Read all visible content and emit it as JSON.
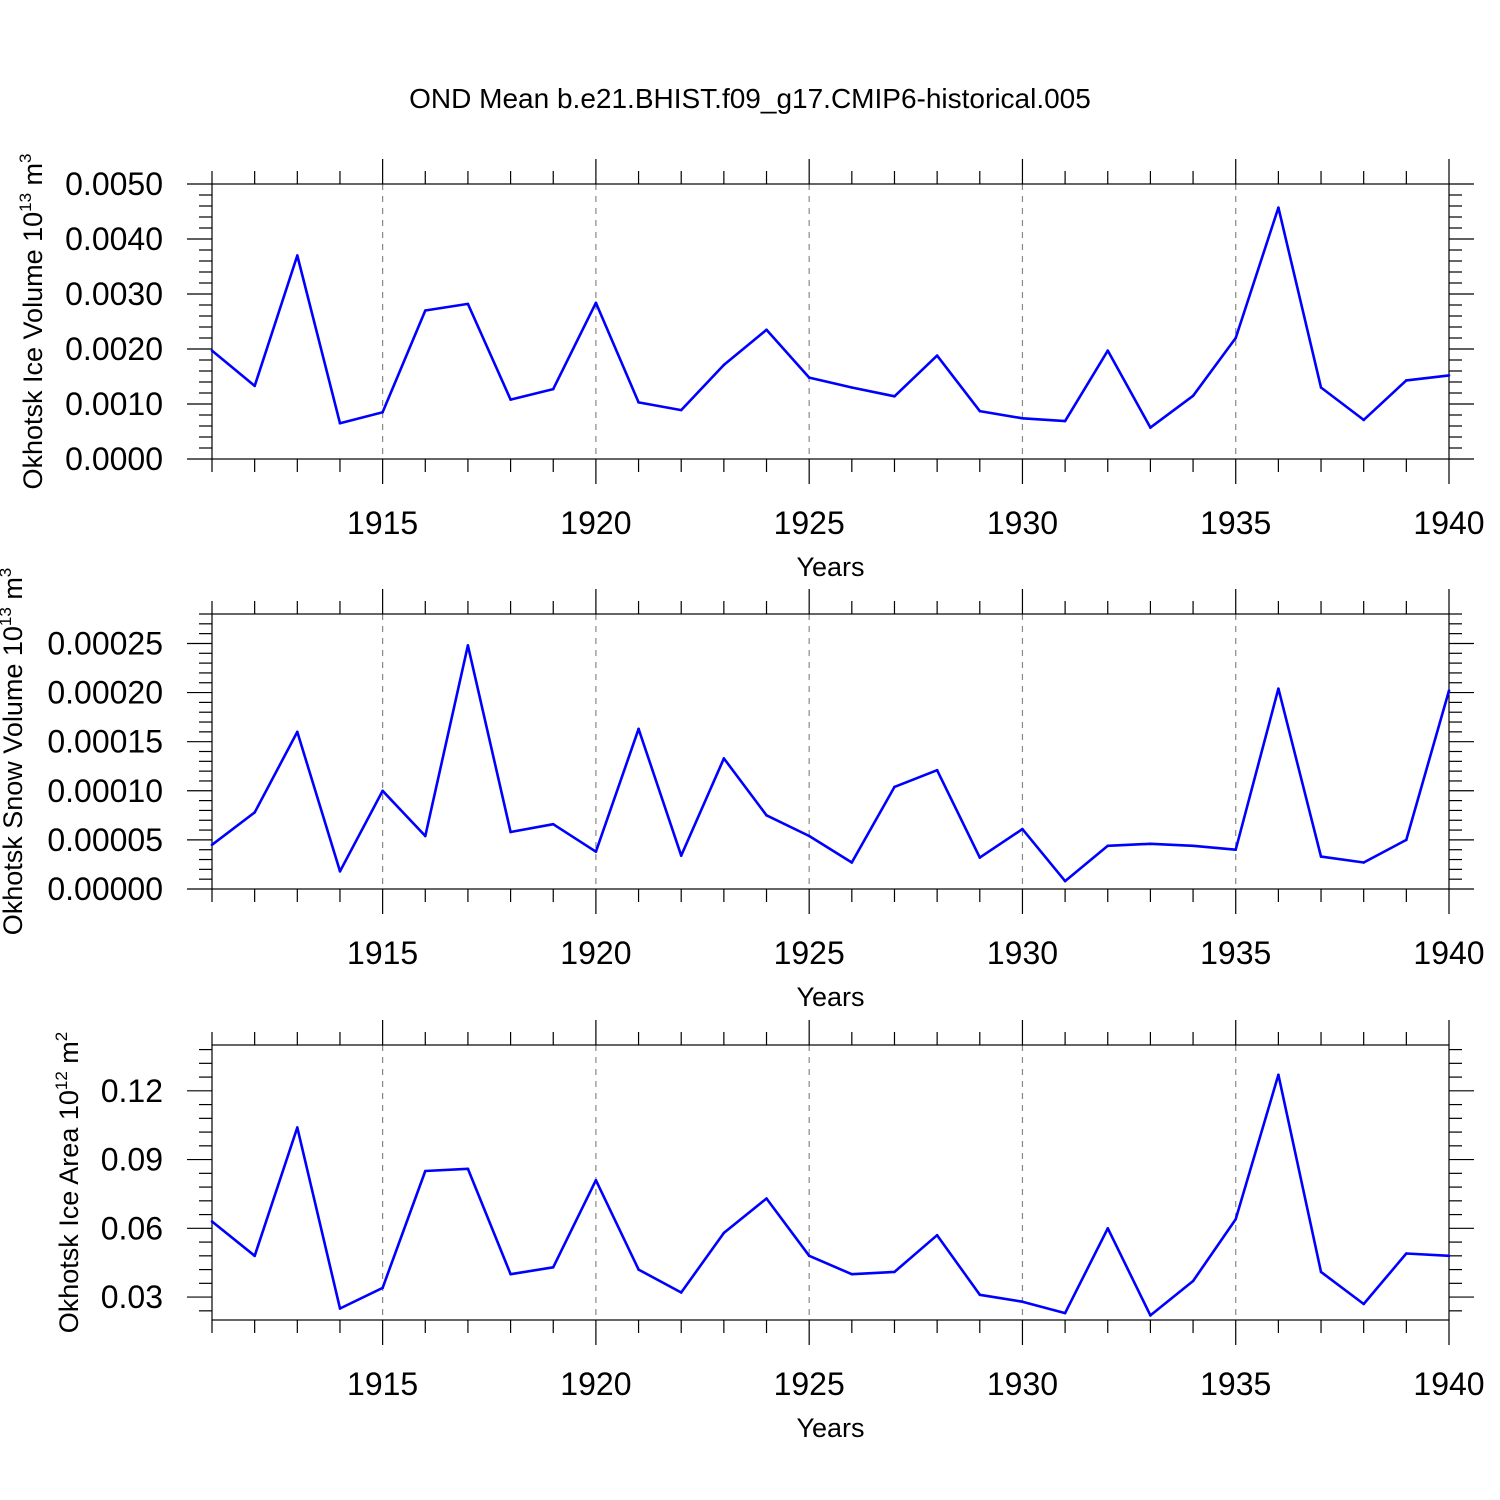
{
  "title": "OND Mean b.e21.BHIST.f09_g17.CMIP6-historical.005",
  "colors": {
    "series": "#0000ff",
    "grid": "#888888",
    "axes": "#000000"
  },
  "chart_data": [
    {
      "type": "line",
      "title": "OND Mean b.e21.BHIST.f09_g17.CMIP6-historical.005",
      "xlabel": "Years",
      "ylabel": {
        "text": "Okhotsk Ice Volume 10",
        "sup": "13",
        "unit": " m",
        "unit_sup": "3"
      },
      "xlim": [
        1911,
        1940
      ],
      "ylim": [
        0,
        0.005
      ],
      "xticks": [
        "1915",
        "1920",
        "1925",
        "1930",
        "1935",
        "1940"
      ],
      "yticks": [
        "0.0000",
        "0.0010",
        "0.0020",
        "0.0030",
        "0.0040",
        "0.0050"
      ],
      "ytick_values": [
        0,
        0.001,
        0.002,
        0.003,
        0.004,
        0.005
      ],
      "grid": "vertical dashed at major x ticks",
      "x": [
        1911,
        1912,
        1913,
        1914,
        1915,
        1916,
        1917,
        1918,
        1919,
        1920,
        1921,
        1922,
        1923,
        1924,
        1925,
        1926,
        1927,
        1928,
        1929,
        1930,
        1931,
        1932,
        1933,
        1934,
        1935,
        1936,
        1937,
        1938,
        1939,
        1940
      ],
      "values": [
        0.00197,
        0.00133,
        0.0037,
        0.00065,
        0.00085,
        0.0027,
        0.00282,
        0.00108,
        0.00127,
        0.00284,
        0.00103,
        0.00089,
        0.00171,
        0.00235,
        0.00148,
        0.0013,
        0.00114,
        0.00188,
        0.00087,
        0.00074,
        0.00069,
        0.00197,
        0.00057,
        0.00115,
        0.0022,
        0.00457,
        0.0013,
        0.00071,
        0.00143,
        0.00152
      ]
    },
    {
      "type": "line",
      "xlabel": "Years",
      "ylabel": {
        "text": "Okhotsk Snow Volume 10",
        "sup": "13",
        "unit": " m",
        "unit_sup": "3"
      },
      "xlim": [
        1911,
        1940
      ],
      "ylim": [
        0,
        0.00028
      ],
      "xticks": [
        "1915",
        "1920",
        "1925",
        "1930",
        "1935",
        "1940"
      ],
      "yticks": [
        "0.00000",
        "0.00005",
        "0.00010",
        "0.00015",
        "0.00020",
        "0.00025"
      ],
      "ytick_values": [
        0,
        5e-05,
        0.0001,
        0.00015,
        0.0002,
        0.00025
      ],
      "grid": "vertical dashed at major x ticks",
      "x": [
        1911,
        1912,
        1913,
        1914,
        1915,
        1916,
        1917,
        1918,
        1919,
        1920,
        1921,
        1922,
        1923,
        1924,
        1925,
        1926,
        1927,
        1928,
        1929,
        1930,
        1931,
        1932,
        1933,
        1934,
        1935,
        1936,
        1937,
        1938,
        1939,
        1940
      ],
      "values": [
        4.5e-05,
        7.8e-05,
        0.00016,
        1.8e-05,
        0.0001,
        5.4e-05,
        0.000248,
        5.8e-05,
        6.6e-05,
        3.8e-05,
        0.000163,
        3.4e-05,
        0.000133,
        7.5e-05,
        5.4e-05,
        2.7e-05,
        0.000104,
        0.000121,
        3.2e-05,
        6.1e-05,
        8e-06,
        4.4e-05,
        4.6e-05,
        4.4e-05,
        4e-05,
        0.000204,
        3.3e-05,
        2.7e-05,
        5e-05,
        0.000202
      ]
    },
    {
      "type": "line",
      "xlabel": "Years",
      "ylabel": {
        "text": "Okhotsk Ice Area 10",
        "sup": "12",
        "unit": " m",
        "unit_sup": "2"
      },
      "xlim": [
        1911,
        1940
      ],
      "ylim": [
        0.02,
        0.14
      ],
      "xticks": [
        "1915",
        "1920",
        "1925",
        "1930",
        "1935",
        "1940"
      ],
      "yticks": [
        "0.03",
        "0.06",
        "0.09",
        "0.12"
      ],
      "ytick_values": [
        0.03,
        0.06,
        0.09,
        0.12
      ],
      "grid": "vertical dashed at major x ticks",
      "x": [
        1911,
        1912,
        1913,
        1914,
        1915,
        1916,
        1917,
        1918,
        1919,
        1920,
        1921,
        1922,
        1923,
        1924,
        1925,
        1926,
        1927,
        1928,
        1929,
        1930,
        1931,
        1932,
        1933,
        1934,
        1935,
        1936,
        1937,
        1938,
        1939,
        1940
      ],
      "values": [
        0.063,
        0.048,
        0.104,
        0.025,
        0.034,
        0.085,
        0.086,
        0.04,
        0.043,
        0.081,
        0.042,
        0.032,
        0.058,
        0.073,
        0.048,
        0.04,
        0.041,
        0.057,
        0.031,
        0.028,
        0.023,
        0.06,
        0.022,
        0.037,
        0.064,
        0.127,
        0.041,
        0.027,
        0.049,
        0.048
      ]
    }
  ]
}
